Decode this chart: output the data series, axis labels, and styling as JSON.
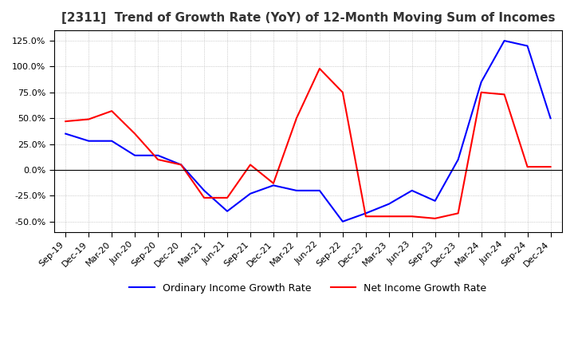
{
  "title": "[2311]  Trend of Growth Rate (YoY) of 12-Month Moving Sum of Incomes",
  "title_fontsize": 11,
  "ylim": [
    -60,
    135
  ],
  "yticks": [
    -50,
    -25,
    0,
    25,
    50,
    75,
    100,
    125
  ],
  "legend_labels": [
    "Ordinary Income Growth Rate",
    "Net Income Growth Rate"
  ],
  "legend_colors": [
    "blue",
    "red"
  ],
  "x_labels": [
    "Sep-19",
    "Dec-19",
    "Mar-20",
    "Jun-20",
    "Sep-20",
    "Dec-20",
    "Mar-21",
    "Jun-21",
    "Sep-21",
    "Dec-21",
    "Mar-22",
    "Jun-22",
    "Sep-22",
    "Dec-22",
    "Mar-23",
    "Jun-23",
    "Sep-23",
    "Dec-23",
    "Mar-24",
    "Jun-24",
    "Sep-24",
    "Dec-24"
  ],
  "ordinary_income_growth": [
    35,
    28,
    28,
    14,
    14,
    5,
    -20,
    -40,
    -23,
    -15,
    -20,
    -20,
    -50,
    -42,
    -33,
    -20,
    -30,
    10,
    85,
    125,
    120,
    50
  ],
  "net_income_growth": [
    47,
    49,
    57,
    35,
    10,
    5,
    -27,
    -27,
    5,
    -13,
    50,
    98,
    75,
    -45,
    -45,
    -45,
    -47,
    -42,
    75,
    73,
    3,
    3
  ]
}
